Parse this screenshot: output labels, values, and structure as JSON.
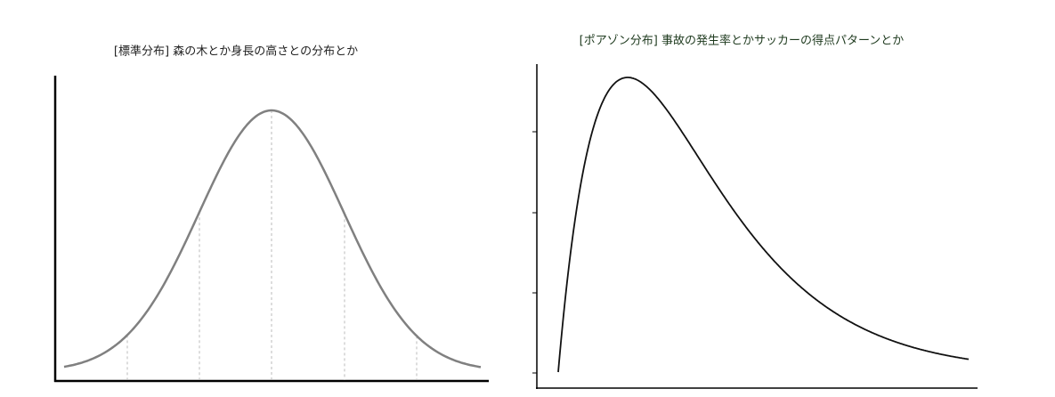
{
  "left_panel": {
    "title": "[標準分布] 森の木とか身長の高さとの分布とか"
  },
  "right_panel": {
    "title": "[ポアゾン分布] 事故の発生率とかサッカーの得点パターンとか"
  }
}
